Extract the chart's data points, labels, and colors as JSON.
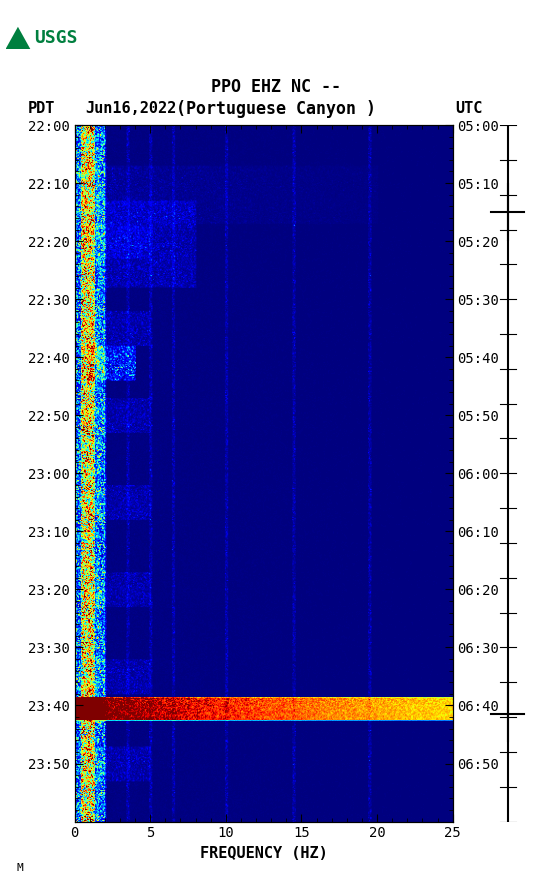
{
  "title_line1": "PPO EHZ NC --",
  "title_line2": "(Portuguese Canyon )",
  "left_label": "PDT",
  "date_label": "Jun16,2022",
  "right_label": "UTC",
  "xlabel": "FREQUENCY (HZ)",
  "freq_min": 0,
  "freq_max": 25,
  "ytick_pdt": [
    "22:00",
    "22:10",
    "22:20",
    "22:30",
    "22:40",
    "22:50",
    "23:00",
    "23:10",
    "23:20",
    "23:30",
    "23:40",
    "23:50"
  ],
  "ytick_utc": [
    "05:00",
    "05:10",
    "05:20",
    "05:30",
    "05:40",
    "05:50",
    "06:00",
    "06:10",
    "06:20",
    "06:30",
    "06:40",
    "06:50"
  ],
  "xtick_labels": [
    "0",
    "5",
    "10",
    "15",
    "20",
    "25"
  ],
  "xtick_vals": [
    0,
    5,
    10,
    15,
    20,
    25
  ],
  "colormap": "jet",
  "fig_width": 5.52,
  "fig_height": 8.93,
  "dpi": 100,
  "annotation_text": "M",
  "usgs_color": "#007f3f"
}
